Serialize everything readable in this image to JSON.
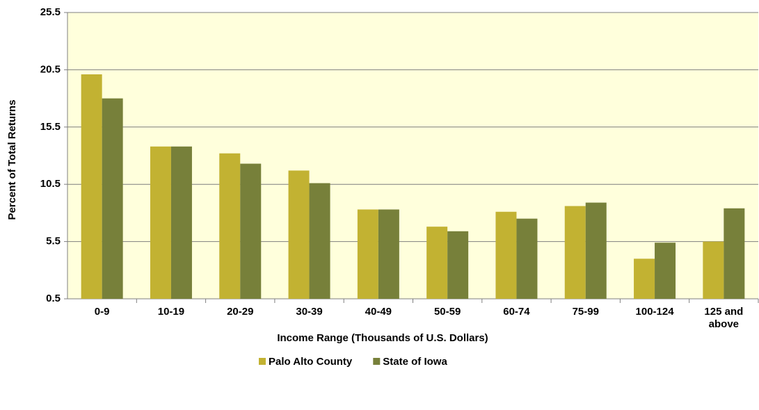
{
  "chart_data": {
    "type": "bar",
    "x_label": "Income Range (Thousands of U.S. Dollars)",
    "y_label": "Percent of Total Returns",
    "categories": [
      "0-9",
      "10-19",
      "20-29",
      "30-39",
      "40-49",
      "50-59",
      "60-74",
      "75-99",
      "100-124",
      "125 and above"
    ],
    "series": [
      {
        "name": "Palo Alto County",
        "color": "#c2b232",
        "values": [
          20.1,
          13.8,
          13.2,
          11.7,
          8.3,
          6.8,
          8.1,
          8.6,
          4.0,
          5.5
        ]
      },
      {
        "name": "State of Iowa",
        "color": "#77803a",
        "values": [
          18.0,
          13.8,
          12.3,
          10.6,
          8.3,
          6.4,
          7.5,
          8.9,
          5.4,
          8.4
        ]
      }
    ],
    "ylim": [
      0.5,
      25.5
    ],
    "yticks": [
      0.5,
      5.5,
      10.5,
      15.5,
      20.5,
      25.5
    ],
    "grid": true,
    "legend": "bottom"
  }
}
